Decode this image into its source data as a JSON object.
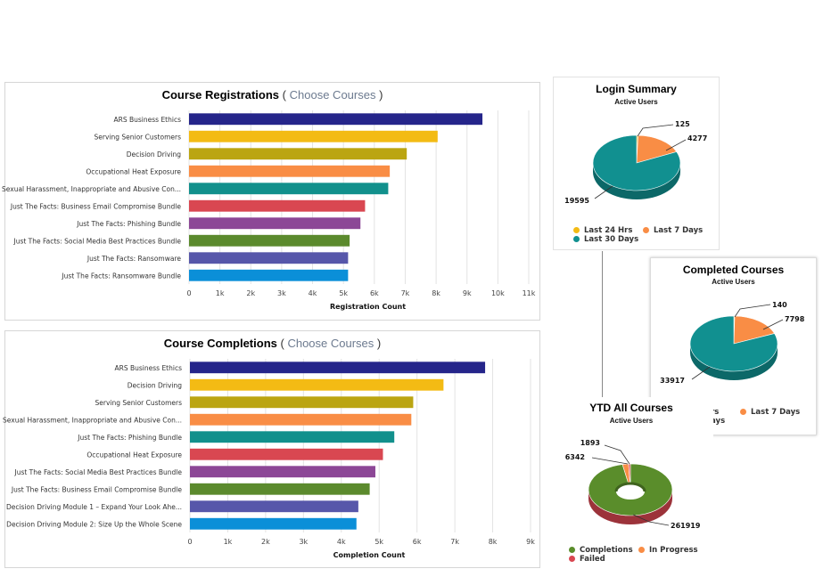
{
  "colors": {
    "bars": [
      "#25258a",
      "#f3bb14",
      "#bba512",
      "#f98d45",
      "#12908c",
      "#d94751",
      "#8c4796",
      "#5b8a2d",
      "#5757aa",
      "#0b8fd8"
    ],
    "pie_teal": "#119090",
    "pie_orange": "#f98d45",
    "pie_yellow": "#f3bb14",
    "pie_green": "#5a8d2b",
    "pie_red": "#d94751"
  },
  "registrations": {
    "title": "Course Registrations",
    "link": "Choose Courses",
    "paren_open": "(",
    "paren_close": ")"
  },
  "completions": {
    "title": "Course Completions",
    "link": "Choose Courses",
    "paren_open": "(",
    "paren_close": ")"
  },
  "login": {
    "title": "Login Summary",
    "subtitle": "Active Users",
    "legend": [
      "Last 24 Hrs",
      "Last 7 Days",
      "Last 30 Days"
    ]
  },
  "completed": {
    "title": "Completed Courses",
    "subtitle": "Active Users",
    "legend": [
      "Hrs",
      "Last 7 Days",
      "Days"
    ]
  },
  "ytd": {
    "title": "YTD All Courses",
    "subtitle": "Active Users",
    "legend": [
      "Completions",
      "In Progress",
      "Failed"
    ]
  },
  "chart_data": [
    {
      "type": "bar",
      "orientation": "horizontal",
      "categories": [
        "ARS Business Ethics",
        "Serving Senior Customers",
        "Decision Driving",
        "Occupational Heat Exposure",
        "Sexual Harassment, Inappropriate and Abusive Con...",
        "Just The Facts: Business Email Compromise Bundle",
        "Just The Facts: Phishing Bundle",
        "Just The Facts: Social Media Best Practices Bundle",
        "Just The Facts: Ransomware",
        "Just The Facts: Ransomware Bundle"
      ],
      "values": [
        9500,
        8050,
        7050,
        6500,
        6450,
        5700,
        5550,
        5200,
        5150,
        5150
      ],
      "xlabel": "Registration Count",
      "xlim": [
        0,
        11000
      ],
      "xticks": [
        "0",
        "1k",
        "2k",
        "3k",
        "4k",
        "5k",
        "6k",
        "7k",
        "8k",
        "9k",
        "10k",
        "11k"
      ],
      "grid": true
    },
    {
      "type": "bar",
      "orientation": "horizontal",
      "categories": [
        "ARS Business Ethics",
        "Decision Driving",
        "Serving Senior Customers",
        "Sexual Harassment, Inappropriate and Abusive Con...",
        "Just The Facts: Phishing Bundle",
        "Occupational Heat Exposure",
        "Just The Facts: Social Media Best Practices Bundle",
        "Just The Facts: Business Email Compromise Bundle",
        "Decision Driving Module 1 – Expand Your Look Ahe...",
        "Decision Driving Module 2: Size Up the Whole Scene"
      ],
      "values": [
        7800,
        6700,
        5900,
        5850,
        5400,
        5100,
        4900,
        4750,
        4450,
        4400
      ],
      "xlabel": "Completion Count",
      "xlim": [
        0,
        9000
      ],
      "xticks": [
        "0",
        "1k",
        "2k",
        "3k",
        "4k",
        "5k",
        "6k",
        "7k",
        "8k",
        "9k"
      ],
      "grid": true
    },
    {
      "type": "pie",
      "labels": [
        "Last 24 Hrs",
        "Last 7 Days",
        "Last 30 Days"
      ],
      "values": [
        125,
        4277,
        19595
      ],
      "value_labels": [
        "125",
        "4277",
        "19595"
      ]
    },
    {
      "type": "pie",
      "labels": [
        "Last 24 Hrs",
        "Last 7 Days",
        "Last 30 Days"
      ],
      "values": [
        140,
        7798,
        33917
      ],
      "value_labels": [
        "140",
        "7798",
        "33917"
      ]
    },
    {
      "type": "pie",
      "donut": true,
      "labels": [
        "Completions",
        "In Progress",
        "Failed"
      ],
      "values": [
        261919,
        6342,
        1893
      ],
      "value_labels": [
        "261919",
        "6342",
        "1893"
      ]
    }
  ]
}
